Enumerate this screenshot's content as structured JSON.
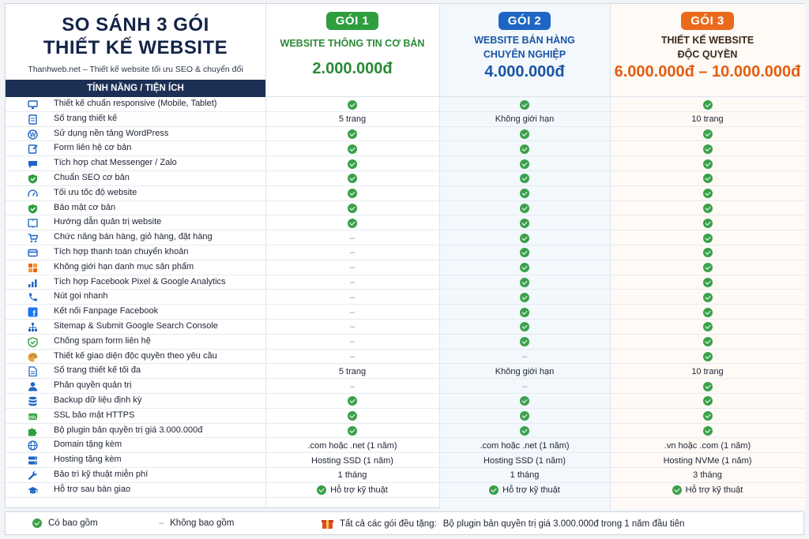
{
  "header": {
    "title_line1": "SO SÁNH 3 GÓI",
    "title_line2": "THIẾT KẾ WEBSITE",
    "subtitle": "Thanhweb.net – Thiết kế website tối ưu SEO & chuyển đổi",
    "feature_col_label": "TÍNH NĂNG / TIỆN ÍCH"
  },
  "packages": [
    {
      "badge": "GÓI 1",
      "name_line1": "WEBSITE THÔNG TIN CƠ BẢN",
      "name_line2": "",
      "price": "2.000.000đ",
      "color": "#2e9e3f"
    },
    {
      "badge": "GÓI 2",
      "name_line1": "WEBSITE BÁN HÀNG",
      "name_line2": "CHUYÊN NGHIỆP",
      "price": "4.000.000đ",
      "color": "#1f66c4"
    },
    {
      "badge": "GÓI 3",
      "name_line1": "THIẾT KẾ WEBSITE",
      "name_line2": "ĐỘC QUYỀN",
      "price": "6.000.000đ – 10.000.000đ",
      "color": "#ea6a1c"
    }
  ],
  "features": [
    {
      "icon": "monitor-icon",
      "label": "Thiết kế chuẩn responsive (Mobile, Tablet)",
      "v": [
        "check",
        "check",
        "check"
      ]
    },
    {
      "icon": "pages-icon",
      "label": "Số trang thiết kế",
      "v": [
        "5 trang",
        "Không giới hạn",
        "10 trang"
      ]
    },
    {
      "icon": "wordpress-icon",
      "label": "Sử dụng nền tảng WordPress",
      "v": [
        "check",
        "check",
        "check"
      ]
    },
    {
      "icon": "form-edit-icon",
      "label": "Form liên hệ cơ bản",
      "v": [
        "check",
        "check",
        "check"
      ]
    },
    {
      "icon": "chat-icon",
      "label": "Tích hợp chat Messenger / Zalo",
      "v": [
        "check",
        "check",
        "check"
      ]
    },
    {
      "icon": "shield-check-icon",
      "label": "Chuẩn SEO cơ bản",
      "v": [
        "check",
        "check",
        "check"
      ]
    },
    {
      "icon": "speedometer-icon",
      "label": "Tối ưu tốc độ website",
      "v": [
        "check",
        "check",
        "check"
      ]
    },
    {
      "icon": "security-shield-icon",
      "label": "Bảo mật cơ bản",
      "v": [
        "check",
        "check",
        "check"
      ]
    },
    {
      "icon": "book-icon",
      "label": "Hướng dẫn quản trị website",
      "v": [
        "check",
        "check",
        "check"
      ]
    },
    {
      "icon": "cart-icon",
      "label": "Chức năng bán hàng, giỏ hàng, đặt hàng",
      "v": [
        "dash",
        "check",
        "check"
      ]
    },
    {
      "icon": "payment-icon",
      "label": "Tích hợp thanh toán chuyển khoản",
      "v": [
        "dash",
        "check",
        "check"
      ]
    },
    {
      "icon": "grid-icon",
      "label": "Không giới hạn danh mục sản phẩm",
      "v": [
        "dash",
        "check",
        "check"
      ]
    },
    {
      "icon": "analytics-icon",
      "label": "Tích hợp Facebook Pixel & Google Analytics",
      "v": [
        "dash",
        "check",
        "check"
      ]
    },
    {
      "icon": "phone-icon",
      "label": "Nút gọi nhanh",
      "v": [
        "dash",
        "check",
        "check"
      ]
    },
    {
      "icon": "facebook-icon",
      "label": "Kết nối Fanpage Facebook",
      "v": [
        "dash",
        "check",
        "check"
      ]
    },
    {
      "icon": "sitemap-icon",
      "label": "Sitemap & Submit Google Search Console",
      "v": [
        "dash",
        "check",
        "check"
      ]
    },
    {
      "icon": "spam-shield-icon",
      "label": "Chống spam form liên hệ",
      "v": [
        "dash",
        "check",
        "check"
      ]
    },
    {
      "icon": "palette-icon",
      "label": "Thiết kế giao diện độc quyền theo yêu cầu",
      "v": [
        "dash",
        "dash",
        "check"
      ]
    },
    {
      "icon": "document-icon",
      "label": "Số trang thiết kế tối đa",
      "v": [
        "5 trang",
        "Không giới hạn",
        "10 trang"
      ]
    },
    {
      "icon": "admin-user-icon",
      "label": "Phân quyền quản trị",
      "v": [
        "dash",
        "dash",
        "check"
      ]
    },
    {
      "icon": "database-icon",
      "label": "Backup dữ liệu định kỳ",
      "v": [
        "check",
        "check",
        "check"
      ]
    },
    {
      "icon": "ssl-lock-icon",
      "label": "SSL bảo mật HTTPS",
      "v": [
        "check",
        "check",
        "check"
      ]
    },
    {
      "icon": "puzzle-icon",
      "label": "Bộ plugin bản quyền trị giá 3.000.000đ",
      "v": [
        "check",
        "check",
        "check"
      ]
    },
    {
      "icon": "globe-icon",
      "label": "Domain tặng kèm",
      "v": [
        ".com hoặc .net (1 năm)",
        ".com hoặc .net (1 năm)",
        ".vn hoặc .com (1 năm)"
      ]
    },
    {
      "icon": "server-icon",
      "label": "Hosting tặng kèm",
      "v": [
        "Hosting SSD (1 năm)",
        "Hosting SSD (1 năm)",
        "Hosting NVMe (1 năm)"
      ]
    },
    {
      "icon": "wrench-icon",
      "label": "Bảo trì kỹ thuật miễn phí",
      "v": [
        "1 tháng",
        "1 tháng",
        "3 tháng"
      ]
    },
    {
      "icon": "graduation-cap-icon",
      "label": "Hỗ trợ sau bàn giao",
      "v": [
        "support",
        "support",
        "support"
      ]
    }
  ],
  "support_text": "Hỗ trợ kỹ thuật",
  "dash_symbol": "–",
  "legend": {
    "included": "Có bao gồm",
    "dash": "–",
    "excluded": "Không bao gồm",
    "gift_prefix": "Tất cả các gói đều tặng:",
    "gift_text": "Bộ plugin bản quyền trị giá 3.000.000đ trong 1 năm đầu tiên"
  },
  "colors": {
    "navy": "#1c2f55",
    "check_green": "#3aa14a",
    "icon_blue": "#1f66c4"
  }
}
